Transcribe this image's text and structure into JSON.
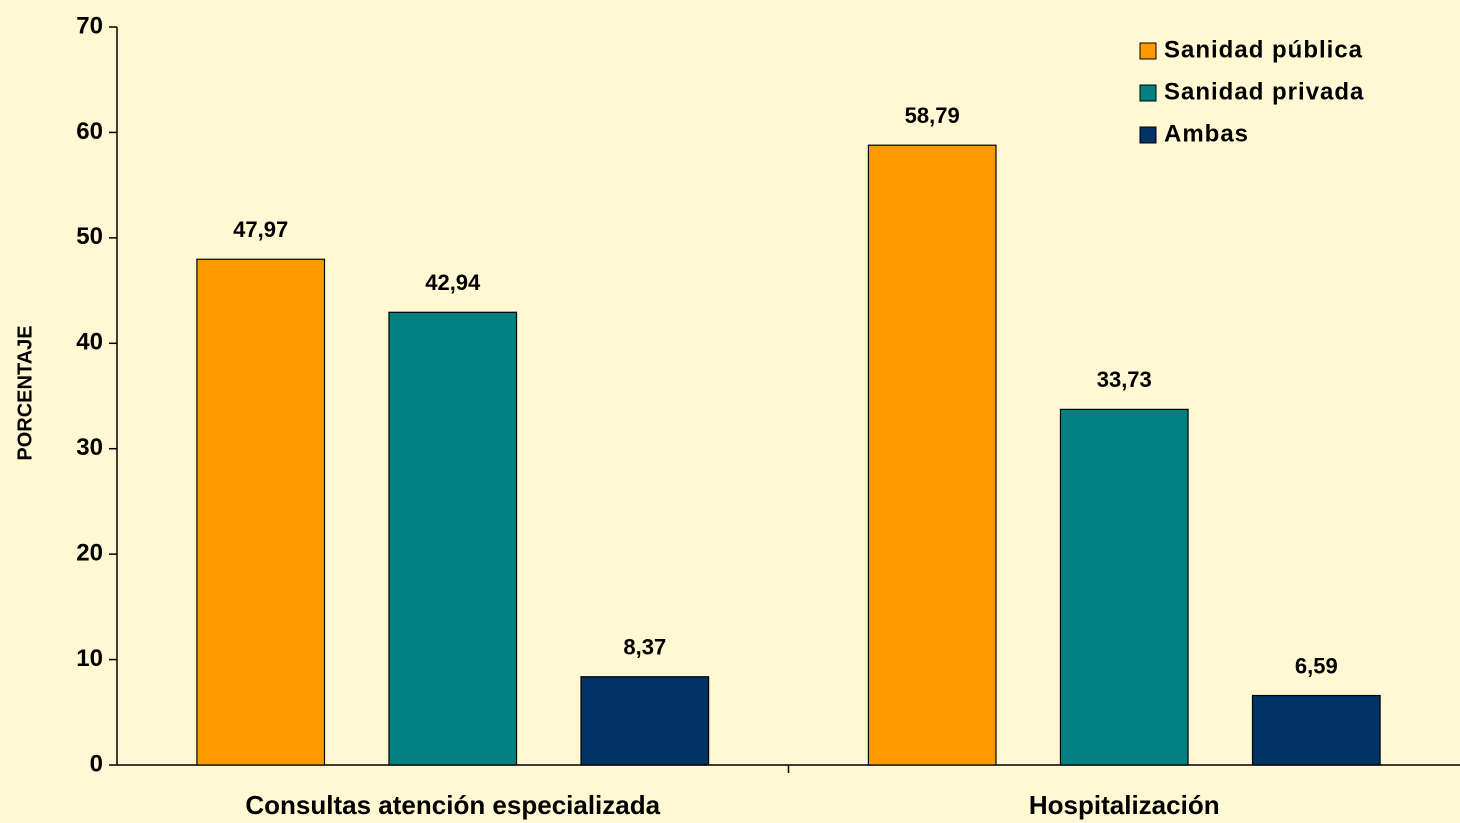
{
  "chart_data": {
    "type": "bar",
    "y_label": "PORCENTAJE",
    "categories": [
      "Consultas atención especializada",
      "Hospitalización"
    ],
    "series": [
      {
        "name": "Sanidad pública",
        "color": "#ff9900",
        "values": [
          47.97,
          58.79
        ],
        "value_labels": [
          "47,97",
          "58,79"
        ]
      },
      {
        "name": "Sanidad privada",
        "color": "#008080",
        "values": [
          42.94,
          33.73
        ],
        "value_labels": [
          "42,94",
          "33,73"
        ]
      },
      {
        "name": "Ambas",
        "color": "#003366",
        "values": [
          8.37,
          6.59
        ],
        "value_labels": [
          "8,37",
          "6,59"
        ]
      }
    ],
    "ylim": [
      0,
      70
    ],
    "yticks": [
      0,
      10,
      20,
      30,
      40,
      50,
      60,
      70
    ],
    "legend": "top-right"
  }
}
